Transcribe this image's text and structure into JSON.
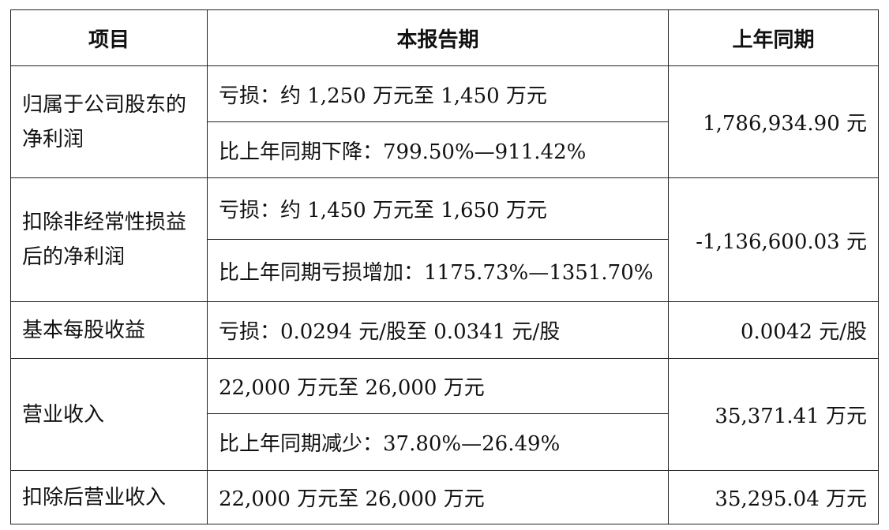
{
  "headers": [
    "项目",
    "本报告期",
    "上年同期"
  ],
  "rows": [
    {
      "item": "归属于公司股东的净利润",
      "current": [
        "亏损：约 1,250 万元至 1,450 万元",
        "比上年同期下降：799.50%—911.42%"
      ],
      "prior": "1,786,934.90 元"
    },
    {
      "item": "扣除非经常性损益后的净利润",
      "current": [
        "亏损：约 1,450 万元至 1,650 万元",
        "比上年同期亏损增加：1175.73%—1351.70%"
      ],
      "prior": "-1,136,600.03 元"
    },
    {
      "item": "基本每股收益",
      "current": [
        "亏损：0.0294 元/股至 0.0341 元/股"
      ],
      "prior": "0.0042 元/股"
    },
    {
      "item": "营业收入",
      "current": [
        "22,000 万元至 26,000 万元",
        "比上年同期减少：37.80%—26.49%"
      ],
      "prior": "35,371.41 万元"
    },
    {
      "item": "扣除后营业收入",
      "current": [
        "22,000 万元至 26,000 万元"
      ],
      "prior": "35,295.04 万元"
    }
  ]
}
